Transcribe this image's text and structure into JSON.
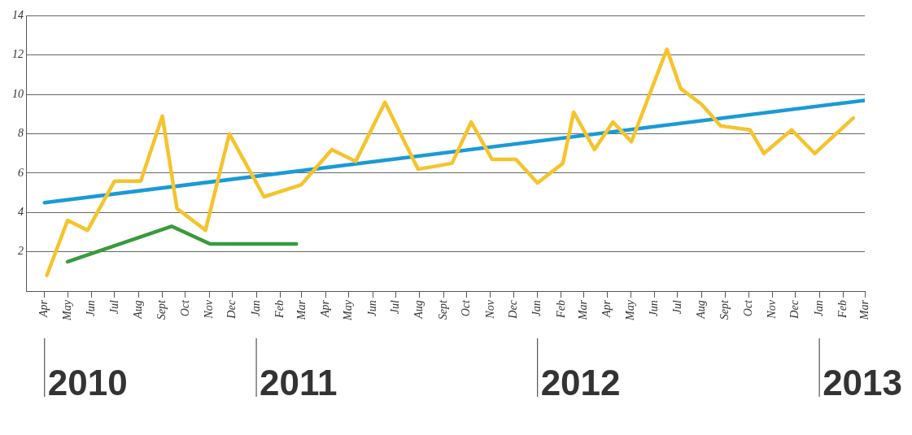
{
  "chart_data": {
    "type": "line",
    "xlim": [
      "2010-03-08",
      "2013-03-01"
    ],
    "xticks": [
      {
        "value": "2010-04",
        "label": "Apr"
      },
      {
        "value": "2010-05",
        "label": "May"
      },
      {
        "value": "2010-06",
        "label": "Jun"
      },
      {
        "value": "2010-07",
        "label": "Jul"
      },
      {
        "value": "2010-08",
        "label": "Aug"
      },
      {
        "value": "2010-09",
        "label": "Sept"
      },
      {
        "value": "2010-10",
        "label": "Oct"
      },
      {
        "value": "2010-11",
        "label": "Nov"
      },
      {
        "value": "2010-12",
        "label": "Dec"
      },
      {
        "value": "2011-01",
        "label": "Jan"
      },
      {
        "value": "2011-02",
        "label": "Feb"
      },
      {
        "value": "2011-03",
        "label": "Mar"
      },
      {
        "value": "2011-04",
        "label": "Apr"
      },
      {
        "value": "2011-05",
        "label": "May"
      },
      {
        "value": "2011-06",
        "label": "Jun"
      },
      {
        "value": "2011-07",
        "label": "Jul"
      },
      {
        "value": "2011-08",
        "label": "Aug"
      },
      {
        "value": "2011-09",
        "label": "Sept"
      },
      {
        "value": "2011-10",
        "label": "Oct"
      },
      {
        "value": "2011-11",
        "label": "Nov"
      },
      {
        "value": "2011-12",
        "label": "Dec"
      },
      {
        "value": "2012-01",
        "label": "Jan"
      },
      {
        "value": "2012-02",
        "label": "Feb"
      },
      {
        "value": "2012-03",
        "label": "Mar"
      },
      {
        "value": "2012-04",
        "label": "Apr"
      },
      {
        "value": "2012-05",
        "label": "May"
      },
      {
        "value": "2012-06",
        "label": "Jun"
      },
      {
        "value": "2012-07",
        "label": "Jul"
      },
      {
        "value": "2012-08",
        "label": "Aug"
      },
      {
        "value": "2012-09",
        "label": "Sept"
      },
      {
        "value": "2012-10",
        "label": "Oct"
      },
      {
        "value": "2012-11",
        "label": "Nov"
      },
      {
        "value": "2012-12",
        "label": "Dec"
      },
      {
        "value": "2013-01",
        "label": "Jan"
      },
      {
        "value": "2013-02",
        "label": "Feb"
      },
      {
        "value": "2013-03",
        "label": "Mar"
      }
    ],
    "ylim": [
      0,
      14
    ],
    "yticks": [
      {
        "value": 0,
        "label": null
      },
      2,
      4,
      6,
      8,
      10,
      12,
      14
    ],
    "grid": "y",
    "legend": false,
    "marker": "none",
    "line_style": "solid",
    "series": [
      {
        "color": "#f5c42c",
        "x": [
          "2010-04-04",
          "2010-05-01",
          "2010-05-27",
          "2010-07-01",
          "2010-08-04",
          "2010-09-01",
          "2010-09-20",
          "2010-10-27",
          "2010-11-27",
          "2011-01-11",
          "2011-02-28",
          "2011-04-09",
          "2011-05-10",
          "2011-06-17",
          "2011-07-30",
          "2011-09-12",
          "2011-10-07",
          "2011-11-03",
          "2011-12-04",
          "2012-01-01",
          "2012-02-03",
          "2012-02-17",
          "2012-03-15",
          "2012-04-08",
          "2012-05-02",
          "2012-06-17",
          "2012-07-05",
          "2012-08-01",
          "2012-08-26",
          "2012-10-03",
          "2012-10-21",
          "2012-11-26",
          "2012-12-26",
          "2013-02-14"
        ],
        "values": [
          0.8,
          3.6,
          3.1,
          5.6,
          5.6,
          8.9,
          4.2,
          3.1,
          8.0,
          4.8,
          5.4,
          7.2,
          6.6,
          9.6,
          6.2,
          6.5,
          8.6,
          6.7,
          6.7,
          5.5,
          6.5,
          9.1,
          7.2,
          8.6,
          7.6,
          12.3,
          10.3,
          9.5,
          8.4,
          8.2,
          7.0,
          8.2,
          7.0,
          8.8
        ]
      },
      {
        "color": "#3a9a3c",
        "x": [
          "2010-05-01",
          "2010-09-13",
          "2010-11-02",
          "2011-02-22"
        ],
        "values": [
          1.5,
          3.3,
          2.4,
          2.4
        ]
      },
      {
        "color": "#1b9ad6",
        "x": [
          "2010-04-01",
          "2013-03-01"
        ],
        "values": [
          4.5,
          9.7
        ]
      }
    ],
    "annotations": [
      "2010",
      "2011",
      "2012",
      "2013"
    ]
  }
}
